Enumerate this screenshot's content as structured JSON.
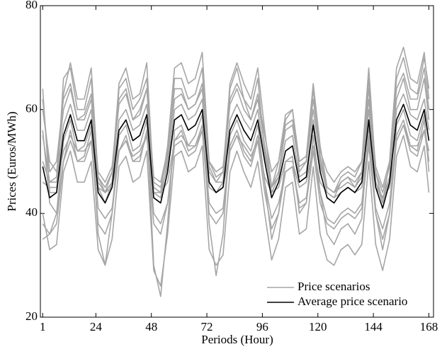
{
  "chart_data": {
    "type": "line",
    "x_label": "Periods (Hour)",
    "y_label": "Prices (Euros/MWh)",
    "x": [
      1,
      4,
      7,
      10,
      13,
      16,
      19,
      22,
      25,
      28,
      31,
      34,
      37,
      40,
      43,
      46,
      49,
      52,
      55,
      58,
      61,
      64,
      67,
      70,
      73,
      76,
      79,
      82,
      85,
      88,
      91,
      94,
      97,
      100,
      103,
      106,
      109,
      112,
      115,
      118,
      121,
      124,
      127,
      130,
      133,
      136,
      139,
      142,
      145,
      148,
      151,
      154,
      157,
      160,
      163,
      166,
      168
    ],
    "xlim": [
      0,
      170
    ],
    "xticks": [
      1,
      24,
      48,
      72,
      96,
      120,
      144,
      168
    ],
    "ylim": [
      20,
      80
    ],
    "yticks": [
      20,
      40,
      60,
      80
    ],
    "legend": "lower right",
    "series": [
      {
        "name": "Price scenarios",
        "color": "#a6a6a6",
        "values": [
          55,
          46,
          47,
          63,
          69,
          62,
          62,
          68,
          47,
          44,
          48,
          65,
          68,
          62,
          63,
          69,
          45,
          44,
          53,
          68,
          69,
          65,
          66,
          71,
          50,
          47,
          48,
          65,
          69,
          65,
          62,
          68,
          56,
          45,
          50,
          59,
          60,
          50,
          51,
          65,
          53,
          45,
          44,
          47,
          48,
          47,
          50,
          68,
          48,
          42,
          50,
          68,
          72,
          66,
          65,
          71,
          62
        ]
      },
      {
        "color": "#a6a6a6",
        "values": [
          40,
          33,
          34,
          48,
          52,
          46,
          46,
          50,
          33,
          30,
          35,
          49,
          51,
          46,
          47,
          52,
          29,
          26,
          36,
          51,
          52,
          48,
          49,
          53,
          33,
          30,
          32,
          48,
          52,
          48,
          45,
          50,
          40,
          31,
          35,
          45,
          46,
          36,
          37,
          49,
          36,
          31,
          30,
          33,
          34,
          32,
          34,
          50,
          34,
          29,
          35,
          51,
          55,
          49,
          48,
          53,
          44
        ]
      },
      {
        "color": "#a6a6a6",
        "values": [
          46,
          45,
          45,
          52,
          55,
          52,
          52,
          54,
          45,
          44,
          45,
          52,
          54,
          51,
          52,
          55,
          44,
          44,
          46,
          54,
          55,
          53,
          53,
          56,
          45,
          44,
          45,
          52,
          55,
          53,
          51,
          54,
          47,
          44,
          45,
          50,
          50,
          45,
          46,
          53,
          46,
          44,
          43,
          44,
          45,
          44,
          45,
          54,
          45,
          43,
          45,
          54,
          57,
          53,
          53,
          56,
          52
        ]
      },
      {
        "color": "#a6a6a6",
        "values": [
          60,
          50,
          48,
          60,
          64,
          58,
          59,
          63,
          47,
          45,
          48,
          61,
          63,
          58,
          59,
          64,
          46,
          45,
          51,
          62,
          63,
          60,
          61,
          64,
          49,
          46,
          48,
          61,
          64,
          60,
          58,
          62,
          53,
          45,
          48,
          56,
          57,
          49,
          50,
          60,
          51,
          45,
          44,
          46,
          47,
          46,
          48,
          62,
          48,
          44,
          49,
          62,
          66,
          60,
          60,
          66,
          58
        ]
      },
      {
        "color": "#a6a6a6",
        "values": [
          35,
          36,
          40,
          50,
          56,
          50,
          51,
          56,
          41,
          39,
          41,
          52,
          55,
          50,
          50,
          56,
          40,
          38,
          42,
          54,
          56,
          52,
          53,
          57,
          42,
          40,
          41,
          53,
          56,
          52,
          50,
          55,
          46,
          39,
          42,
          48,
          49,
          42,
          43,
          52,
          44,
          39,
          38,
          40,
          41,
          40,
          42,
          55,
          41,
          37,
          42,
          55,
          58,
          53,
          52,
          58,
          50
        ]
      },
      {
        "color": "#a6a6a6",
        "values": [
          64,
          44,
          44,
          66,
          68,
          60,
          60,
          66,
          45,
          42,
          46,
          64,
          66,
          60,
          62,
          66,
          44,
          43,
          50,
          66,
          66,
          62,
          63,
          68,
          46,
          44,
          46,
          64,
          68,
          62,
          60,
          66,
          52,
          44,
          47,
          58,
          60,
          48,
          50,
          64,
          50,
          44,
          43,
          46,
          47,
          45,
          48,
          66,
          46,
          42,
          47,
          66,
          70,
          64,
          63,
          70,
          64
        ]
      },
      {
        "color": "#a6a6a6",
        "values": [
          56,
          42,
          40,
          54,
          58,
          52,
          53,
          57,
          36,
          30,
          40,
          55,
          57,
          52,
          53,
          58,
          30,
          24,
          38,
          56,
          57,
          53,
          55,
          59,
          38,
          28,
          36,
          55,
          58,
          54,
          52,
          57,
          46,
          35,
          40,
          50,
          51,
          40,
          42,
          55,
          44,
          36,
          34,
          37,
          38,
          36,
          39,
          57,
          40,
          33,
          40,
          57,
          60,
          55,
          54,
          59,
          48
        ]
      },
      {
        "color": "#a6a6a6",
        "values": [
          50,
          46,
          46,
          57,
          61,
          56,
          56,
          60,
          46,
          44,
          46,
          58,
          60,
          56,
          57,
          61,
          45,
          44,
          49,
          60,
          61,
          58,
          59,
          62,
          48,
          46,
          46,
          58,
          61,
          58,
          56,
          60,
          51,
          45,
          47,
          54,
          55,
          47,
          48,
          58,
          49,
          45,
          44,
          45,
          46,
          45,
          47,
          60,
          46,
          43,
          47,
          60,
          63,
          59,
          58,
          62,
          56
        ]
      },
      {
        "color": "#a6a6a6",
        "values": [
          62,
          48,
          50,
          62,
          65,
          58,
          58,
          62,
          48,
          46,
          49,
          62,
          64,
          58,
          60,
          64,
          47,
          46,
          52,
          64,
          64,
          60,
          61,
          65,
          50,
          48,
          49,
          62,
          65,
          62,
          58,
          63,
          55,
          48,
          50,
          57,
          58,
          50,
          51,
          62,
          52,
          48,
          46,
          48,
          49,
          48,
          50,
          64,
          49,
          45,
          50,
          64,
          67,
          62,
          62,
          68,
          60
        ]
      },
      {
        "color": "#a6a6a6",
        "values": [
          38,
          36,
          38,
          50,
          54,
          50,
          50,
          54,
          38,
          36,
          40,
          52,
          54,
          50,
          51,
          55,
          38,
          36,
          42,
          53,
          54,
          51,
          52,
          56,
          40,
          38,
          40,
          52,
          55,
          51,
          49,
          54,
          44,
          37,
          40,
          48,
          49,
          41,
          42,
          52,
          42,
          38,
          37,
          39,
          40,
          39,
          41,
          53,
          40,
          35,
          40,
          54,
          57,
          52,
          51,
          56,
          50
        ]
      },
      {
        "name": "Average price scenario",
        "color": "#000000",
        "values": [
          49,
          43,
          44,
          55,
          59,
          54,
          54,
          58,
          44,
          42,
          45,
          56,
          58,
          54,
          55,
          59,
          43,
          42,
          48,
          58,
          59,
          56,
          57,
          60,
          46,
          44,
          45,
          56,
          59,
          56,
          54,
          58,
          50,
          43,
          46,
          52,
          53,
          46,
          47,
          57,
          48,
          43,
          42,
          44,
          45,
          44,
          46,
          58,
          45,
          41,
          46,
          58,
          61,
          57,
          56,
          60,
          54
        ]
      }
    ]
  }
}
